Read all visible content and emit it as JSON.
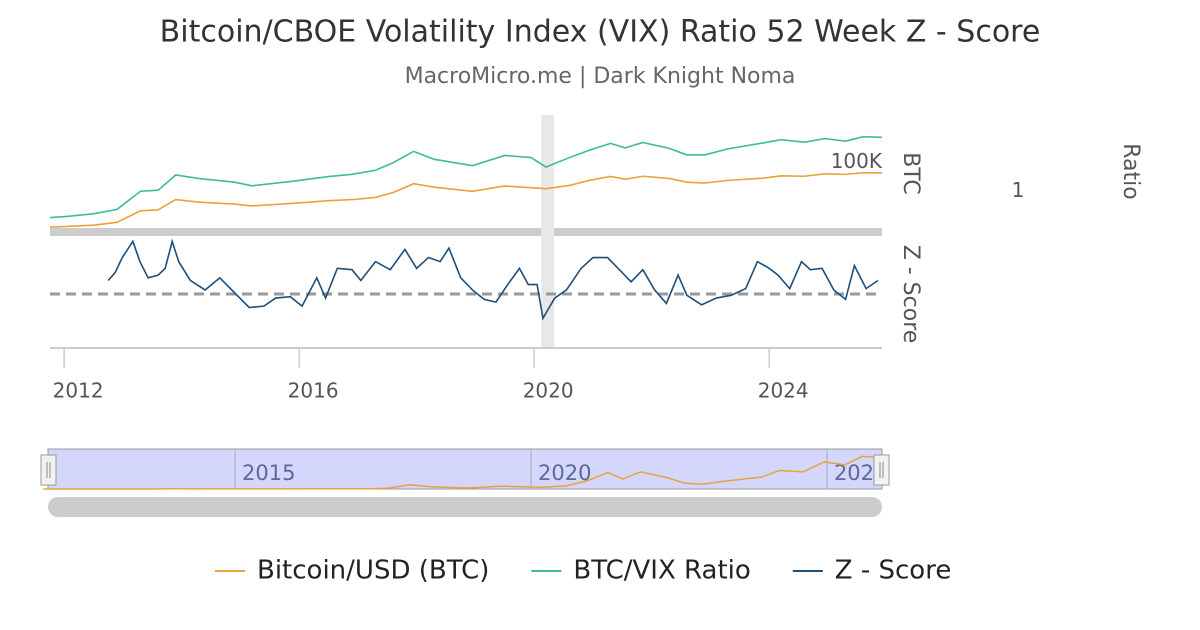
{
  "chart_data": [
    {
      "type": "line",
      "title": "Bitcoin/CBOE Volatility Index (VIX) Ratio 52 Week Z - Score",
      "subtitle": "MacroMicro.me | Dark Knight Noma",
      "x": [
        2011.76,
        2012.0,
        2012.5,
        2012.9,
        2013.3,
        2013.6,
        2013.9,
        2014.3,
        2014.9,
        2015.2,
        2015.9,
        2016.5,
        2016.9,
        2017.3,
        2017.6,
        2017.95,
        2018.3,
        2018.95,
        2019.5,
        2019.95,
        2020.2,
        2020.6,
        2020.95,
        2021.3,
        2021.55,
        2021.85,
        2022.3,
        2022.6,
        2022.9,
        2023.3,
        2023.9,
        2024.2,
        2024.6,
        2024.95,
        2025.3,
        2025.6,
        2025.92
      ],
      "series": [
        {
          "name": "Bitcoin/USD (BTC)",
          "color": "#e8a33d",
          "values": [
            5,
            5.5,
            7,
            12,
            100,
            120,
            800,
            500,
            350,
            250,
            400,
            650,
            800,
            1200,
            3000,
            15000,
            8000,
            3700,
            10000,
            7200,
            6000,
            11000,
            29000,
            58000,
            35000,
            60000,
            40000,
            20000,
            17000,
            28000,
            42000,
            65000,
            60000,
            95000,
            85000,
            115000,
            110000
          ]
        },
        {
          "name": "BTC/VIX Ratio",
          "color": "#3dbb9a",
          "axis": "y2",
          "values": [
            0.25,
            0.28,
            0.4,
            0.7,
            7,
            8,
            55,
            35,
            22,
            14,
            25,
            45,
            60,
            100,
            260,
            1100,
            400,
            180,
            650,
            500,
            150,
            500,
            1300,
            3000,
            1700,
            3400,
            1600,
            700,
            700,
            1500,
            3200,
            4800,
            3500,
            5500,
            4000,
            7000,
            6500
          ]
        }
      ],
      "xlim": [
        2011.76,
        2025.92
      ],
      "log": true,
      "ylim": [
        2,
        5000000000
      ],
      "yticks": [
        {
          "value": 100000,
          "label": "100K"
        }
      ],
      "ylabel": "BTC",
      "y2lim": [
        0.04,
        110000
      ],
      "y2ticks": [
        1
      ],
      "y2label": "Ratio"
    },
    {
      "type": "line",
      "x": [
        2012.75,
        2012.87,
        2012.99,
        2013.17,
        2013.29,
        2013.43,
        2013.6,
        2013.72,
        2013.84,
        2013.95,
        2014.15,
        2014.4,
        2014.65,
        2014.9,
        2015.15,
        2015.4,
        2015.6,
        2015.85,
        2016.05,
        2016.3,
        2016.45,
        2016.65,
        2016.9,
        2017.05,
        2017.3,
        2017.55,
        2017.8,
        2018.0,
        2018.2,
        2018.4,
        2018.55,
        2018.75,
        2018.95,
        2019.15,
        2019.35,
        2019.55,
        2019.75,
        2019.9,
        2020.05,
        2020.15,
        2020.35,
        2020.55,
        2020.8,
        2021.0,
        2021.25,
        2021.45,
        2021.65,
        2021.85,
        2022.05,
        2022.25,
        2022.45,
        2022.6,
        2022.85,
        2023.1,
        2023.35,
        2023.6,
        2023.8,
        2024.0,
        2024.15,
        2024.35,
        2024.55,
        2024.7,
        2024.9,
        2025.1,
        2025.3,
        2025.45,
        2025.65,
        2025.85
      ],
      "series": [
        {
          "name": "Z - Score",
          "color": "#1f4e79",
          "values": [
            1.0,
            1.6,
            2.7,
            3.9,
            2.4,
            1.2,
            1.4,
            1.9,
            3.9,
            2.4,
            1.0,
            0.3,
            1.2,
            0.1,
            -1.0,
            -0.9,
            -0.3,
            -0.2,
            -0.9,
            1.2,
            -0.3,
            1.9,
            1.8,
            1.0,
            2.4,
            1.8,
            3.3,
            1.9,
            2.7,
            2.4,
            3.4,
            1.2,
            0.3,
            -0.4,
            -0.6,
            0.7,
            1.9,
            0.7,
            0.7,
            -1.8,
            -0.3,
            0.3,
            1.9,
            2.7,
            2.7,
            1.8,
            0.9,
            1.8,
            0.3,
            -0.7,
            1.4,
            -0.1,
            -0.8,
            -0.3,
            -0.1,
            0.4,
            2.4,
            1.9,
            1.4,
            0.4,
            2.4,
            1.8,
            1.9,
            0.3,
            -0.4,
            2.1,
            0.4,
            1.0
          ]
        }
      ],
      "xlim": [
        2011.76,
        2025.92
      ],
      "xticks": [
        2012,
        2016,
        2020,
        2024
      ],
      "ylim": [
        -4,
        4
      ],
      "ylabel": "Z - Score",
      "reference_line": 0,
      "reference_color": "#999999",
      "highlight": [
        2020.12,
        2020.34
      ]
    },
    {
      "type": "line",
      "xlim": [
        2011.84,
        2025.93
      ],
      "ylim": [
        0,
        130000
      ],
      "xticks": [
        2015,
        2020,
        {
          "value": 2025,
          "label": "202"
        }
      ]
    }
  ]
}
